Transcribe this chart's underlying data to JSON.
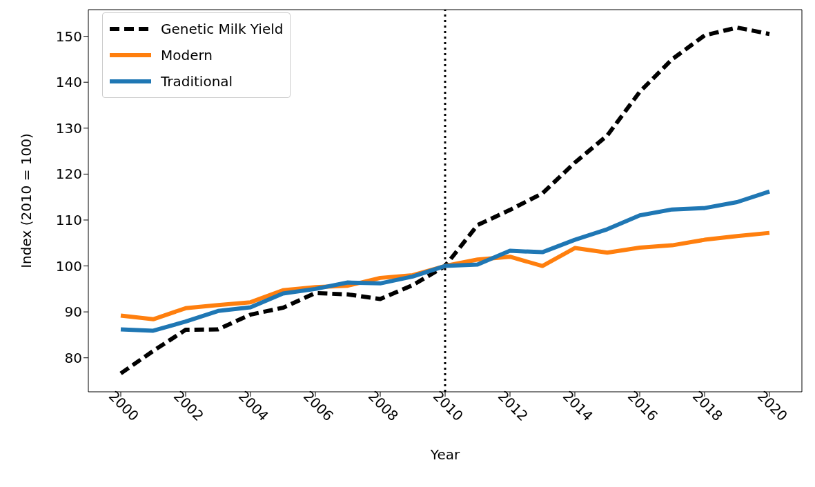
{
  "chart_data": {
    "type": "line",
    "xlabel": "Year",
    "ylabel": "Index (2010 = 100)",
    "x": [
      2000,
      2001,
      2002,
      2003,
      2004,
      2005,
      2006,
      2007,
      2008,
      2009,
      2010,
      2011,
      2012,
      2013,
      2014,
      2015,
      2016,
      2017,
      2018,
      2019,
      2020
    ],
    "series": [
      {
        "name": "Genetic Milk Yield",
        "color": "#000000",
        "line_style": "dashed",
        "values": [
          76.6,
          81.5,
          86.1,
          86.2,
          89.4,
          90.9,
          94.1,
          93.8,
          92.8,
          95.8,
          100,
          108.9,
          112.2,
          115.8,
          122.5,
          128.4,
          137.9,
          145.0,
          150.2,
          151.9,
          150.5
        ]
      },
      {
        "name": "Modern",
        "color": "#ff7f0e",
        "line_style": "solid",
        "values": [
          89.2,
          88.4,
          90.8,
          91.5,
          92.1,
          94.7,
          95.4,
          95.7,
          97.4,
          98.0,
          100,
          101.4,
          102.0,
          100.0,
          103.9,
          102.9,
          104.0,
          104.5,
          105.7,
          106.5,
          107.2
        ]
      },
      {
        "name": "Traditional",
        "color": "#1f77b4",
        "line_style": "solid",
        "values": [
          86.2,
          85.9,
          87.9,
          90.2,
          91.0,
          94.0,
          95.0,
          96.4,
          96.2,
          97.7,
          100,
          100.3,
          103.3,
          103.0,
          105.7,
          108.0,
          111.0,
          112.3,
          112.6,
          113.9,
          116.2
        ]
      }
    ],
    "xlim": [
      1999,
      2021
    ],
    "xticks": [
      2000,
      2002,
      2004,
      2006,
      2008,
      2010,
      2012,
      2014,
      2016,
      2018,
      2020
    ],
    "ylim": [
      72.6,
      155.8
    ],
    "yticks": [
      80,
      90,
      100,
      110,
      120,
      130,
      140,
      150
    ],
    "ref_lines": [
      {
        "axis": "x",
        "value": 2010,
        "color": "#000000",
        "line_style": "dotted"
      }
    ],
    "grid": false,
    "legend": "top left",
    "marker": "none"
  }
}
